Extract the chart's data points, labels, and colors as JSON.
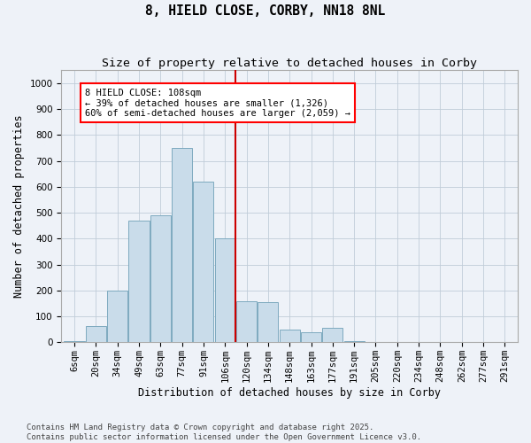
{
  "title": "8, HIELD CLOSE, CORBY, NN18 8NL",
  "subtitle": "Size of property relative to detached houses in Corby",
  "xlabel": "Distribution of detached houses by size in Corby",
  "ylabel": "Number of detached properties",
  "categories": [
    "6sqm",
    "20sqm",
    "34sqm",
    "49sqm",
    "63sqm",
    "77sqm",
    "91sqm",
    "106sqm",
    "120sqm",
    "134sqm",
    "148sqm",
    "163sqm",
    "177sqm",
    "191sqm",
    "205sqm",
    "220sqm",
    "234sqm",
    "248sqm",
    "262sqm",
    "277sqm",
    "291sqm"
  ],
  "values": [
    5,
    62,
    200,
    470,
    490,
    750,
    620,
    400,
    160,
    155,
    50,
    40,
    55,
    5,
    0,
    0,
    0,
    0,
    0,
    0,
    2
  ],
  "bar_color": "#c9dcea",
  "bar_edge_color": "#7eaabf",
  "vline_color": "#cc0000",
  "vline_xindex": 7.5,
  "annotation_text": "8 HIELD CLOSE: 108sqm\n← 39% of detached houses are smaller (1,326)\n60% of semi-detached houses are larger (2,059) →",
  "ylim_max": 1050,
  "yticks": [
    0,
    100,
    200,
    300,
    400,
    500,
    600,
    700,
    800,
    900,
    1000
  ],
  "bg_color": "#eef2f8",
  "grid_color": "#c0ccd8",
  "footer_line1": "Contains HM Land Registry data © Crown copyright and database right 2025.",
  "footer_line2": "Contains public sector information licensed under the Open Government Licence v3.0.",
  "title_fontsize": 10.5,
  "subtitle_fontsize": 9.5,
  "axis_label_fontsize": 8.5,
  "tick_fontsize": 7.5,
  "annotation_fontsize": 7.5,
  "footer_fontsize": 6.5
}
